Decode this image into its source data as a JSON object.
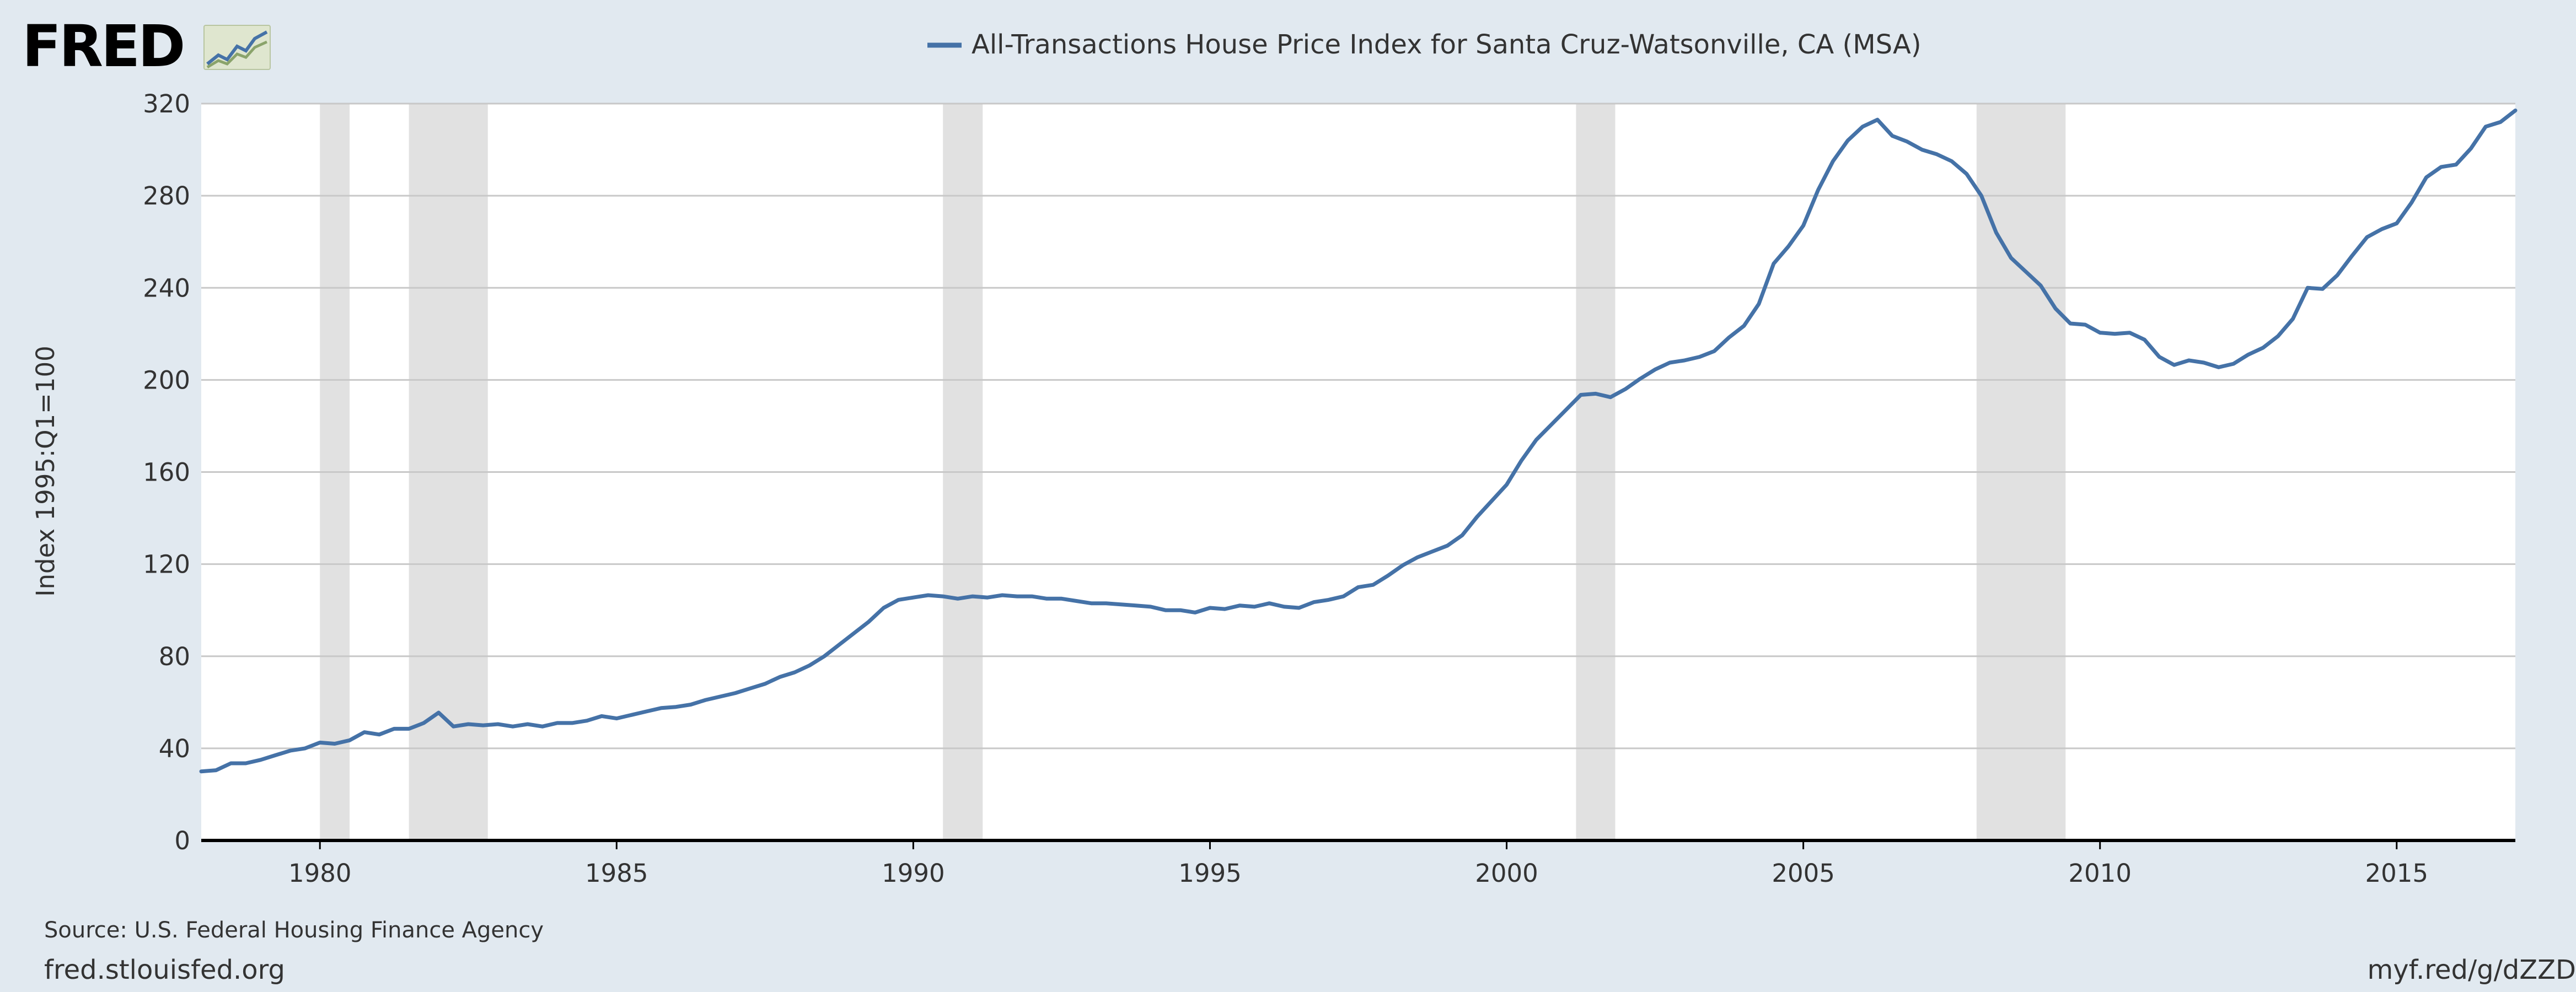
{
  "brand": {
    "name": "FRED",
    "icon": "fred-graph-icon"
  },
  "footer": {
    "source": "Source: U.S. Federal Housing Finance Agency",
    "site": "fred.stlouisfed.org",
    "shortlink": "myf.red/g/dZZD"
  },
  "colors": {
    "line": "#4572a7",
    "recession": "#e1e1e1",
    "grid": "#c8c8c8",
    "background": "#e1e9f0"
  },
  "chart_data": {
    "type": "line",
    "title": "All-Transactions House Price Index for Santa Cruz-Watsonville, CA (MSA)",
    "ylabel": "Index 1995:Q1=100",
    "xlabel": "",
    "xlim": [
      1978.0,
      2017.0
    ],
    "ylim": [
      0,
      320
    ],
    "x_ticks": [
      1980,
      1985,
      1990,
      1995,
      2000,
      2005,
      2010,
      2015
    ],
    "y_ticks": [
      0,
      40,
      80,
      120,
      160,
      200,
      240,
      280,
      320
    ],
    "grid": "horizontal",
    "legend": "top-center",
    "recessions": [
      [
        1980.0,
        1980.5
      ],
      [
        1981.5,
        1982.83
      ],
      [
        1990.5,
        1991.17
      ],
      [
        2001.17,
        2001.83
      ],
      [
        2007.92,
        2009.42
      ]
    ],
    "series": [
      {
        "name": "All-Transactions House Price Index for Santa Cruz-Watsonville, CA (MSA)",
        "color": "#4572a7",
        "points": [
          [
            1978.0,
            30
          ],
          [
            1978.25,
            30.5
          ],
          [
            1978.5,
            33.5
          ],
          [
            1978.75,
            33.5
          ],
          [
            1979.0,
            35
          ],
          [
            1979.25,
            37
          ],
          [
            1979.5,
            39
          ],
          [
            1979.75,
            40
          ],
          [
            1980.0,
            42.5
          ],
          [
            1980.25,
            42
          ],
          [
            1980.5,
            43.5
          ],
          [
            1980.75,
            47
          ],
          [
            1981.0,
            46
          ],
          [
            1981.25,
            48.5
          ],
          [
            1981.5,
            48.5
          ],
          [
            1981.75,
            51
          ],
          [
            1982.0,
            55.5
          ],
          [
            1982.25,
            49.5
          ],
          [
            1982.5,
            50.5
          ],
          [
            1982.75,
            50
          ],
          [
            1983.0,
            50.5
          ],
          [
            1983.25,
            49.5
          ],
          [
            1983.5,
            50.5
          ],
          [
            1983.75,
            49.5
          ],
          [
            1984.0,
            51
          ],
          [
            1984.25,
            51
          ],
          [
            1984.5,
            52
          ],
          [
            1984.75,
            54
          ],
          [
            1985.0,
            53
          ],
          [
            1985.25,
            54.5
          ],
          [
            1985.5,
            56
          ],
          [
            1985.75,
            57.5
          ],
          [
            1986.0,
            58
          ],
          [
            1986.25,
            59
          ],
          [
            1986.5,
            61
          ],
          [
            1986.75,
            62.5
          ],
          [
            1987.0,
            64
          ],
          [
            1987.25,
            66
          ],
          [
            1987.5,
            68
          ],
          [
            1987.75,
            71
          ],
          [
            1988.0,
            73
          ],
          [
            1988.25,
            76
          ],
          [
            1988.5,
            80
          ],
          [
            1988.75,
            85
          ],
          [
            1989.0,
            90
          ],
          [
            1989.25,
            95
          ],
          [
            1989.5,
            101
          ],
          [
            1989.75,
            104.5
          ],
          [
            1990.0,
            105.5
          ],
          [
            1990.25,
            106.5
          ],
          [
            1990.5,
            106
          ],
          [
            1990.75,
            105
          ],
          [
            1991.0,
            106
          ],
          [
            1991.25,
            105.5
          ],
          [
            1991.5,
            106.5
          ],
          [
            1991.75,
            106
          ],
          [
            1992.0,
            106
          ],
          [
            1992.25,
            105
          ],
          [
            1992.5,
            105
          ],
          [
            1992.75,
            104
          ],
          [
            1993.0,
            103
          ],
          [
            1993.25,
            103
          ],
          [
            1993.5,
            102.5
          ],
          [
            1993.75,
            102
          ],
          [
            1994.0,
            101.5
          ],
          [
            1994.25,
            100
          ],
          [
            1994.5,
            100
          ],
          [
            1994.75,
            99
          ],
          [
            1995.0,
            101
          ],
          [
            1995.25,
            100.5
          ],
          [
            1995.5,
            102
          ],
          [
            1995.75,
            101.5
          ],
          [
            1996.0,
            103
          ],
          [
            1996.25,
            101.5
          ],
          [
            1996.5,
            101
          ],
          [
            1996.75,
            103.5
          ],
          [
            1997.0,
            104.5
          ],
          [
            1997.25,
            106
          ],
          [
            1997.5,
            110
          ],
          [
            1997.75,
            111
          ],
          [
            1998.0,
            115
          ],
          [
            1998.25,
            119.5
          ],
          [
            1998.5,
            123
          ],
          [
            1998.75,
            125.5
          ],
          [
            1999.0,
            128
          ],
          [
            1999.25,
            132.5
          ],
          [
            1999.5,
            140.5
          ],
          [
            1999.75,
            147.5
          ],
          [
            2000.0,
            154.5
          ],
          [
            2000.25,
            165
          ],
          [
            2000.5,
            174
          ],
          [
            2000.75,
            180.5
          ],
          [
            2001.0,
            187
          ],
          [
            2001.25,
            193.5
          ],
          [
            2001.5,
            194
          ],
          [
            2001.75,
            192.5
          ],
          [
            2002.0,
            196
          ],
          [
            2002.25,
            200.5
          ],
          [
            2002.5,
            204.5
          ],
          [
            2002.75,
            207.5
          ],
          [
            2003.0,
            208.5
          ],
          [
            2003.25,
            210
          ],
          [
            2003.5,
            212.5
          ],
          [
            2003.75,
            218.5
          ],
          [
            2004.0,
            223.5
          ],
          [
            2004.25,
            233
          ],
          [
            2004.5,
            250.5
          ],
          [
            2004.75,
            258
          ],
          [
            2005.0,
            267
          ],
          [
            2005.25,
            282.5
          ],
          [
            2005.5,
            295
          ],
          [
            2005.75,
            304
          ],
          [
            2006.0,
            310
          ],
          [
            2006.25,
            313
          ],
          [
            2006.5,
            306
          ],
          [
            2006.75,
            303.5
          ],
          [
            2007.0,
            300
          ],
          [
            2007.25,
            298
          ],
          [
            2007.5,
            295
          ],
          [
            2007.75,
            289.5
          ],
          [
            2008.0,
            280
          ],
          [
            2008.25,
            264
          ],
          [
            2008.5,
            253
          ],
          [
            2008.75,
            247
          ],
          [
            2009.0,
            241
          ],
          [
            2009.25,
            231
          ],
          [
            2009.5,
            224.5
          ],
          [
            2009.75,
            224
          ],
          [
            2010.0,
            220.5
          ],
          [
            2010.25,
            220
          ],
          [
            2010.5,
            220.5
          ],
          [
            2010.75,
            217.5
          ],
          [
            2011.0,
            210
          ],
          [
            2011.25,
            206.5
          ],
          [
            2011.5,
            208.5
          ],
          [
            2011.75,
            207.5
          ],
          [
            2012.0,
            205.5
          ],
          [
            2012.25,
            207
          ],
          [
            2012.5,
            211
          ],
          [
            2012.75,
            214
          ],
          [
            2013.0,
            219
          ],
          [
            2013.25,
            226.5
          ],
          [
            2013.5,
            240
          ],
          [
            2013.75,
            239.5
          ],
          [
            2014.0,
            245.5
          ],
          [
            2014.25,
            254
          ],
          [
            2014.5,
            262
          ],
          [
            2014.75,
            265.5
          ],
          [
            2015.0,
            268
          ],
          [
            2015.25,
            277
          ],
          [
            2015.5,
            288
          ],
          [
            2015.75,
            292.5
          ],
          [
            2016.0,
            293.5
          ],
          [
            2016.25,
            300.5
          ],
          [
            2016.5,
            310
          ],
          [
            2016.75,
            312
          ],
          [
            2017.0,
            317
          ]
        ]
      }
    ]
  }
}
